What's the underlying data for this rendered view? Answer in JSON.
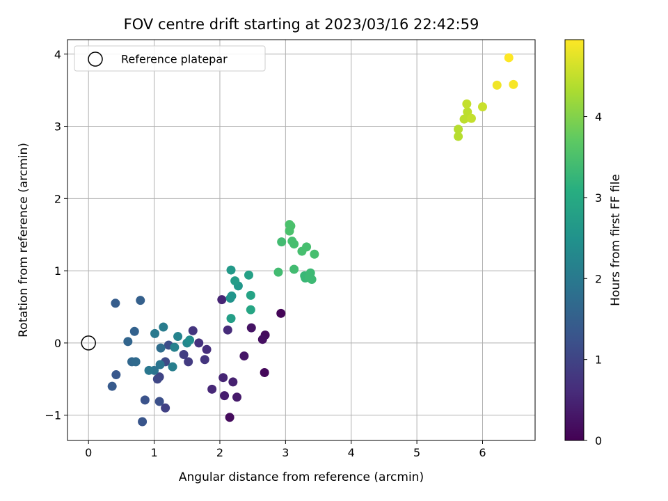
{
  "chart_data": {
    "type": "scatter",
    "title": "FOV centre drift starting at 2023/03/16 22:42:59",
    "xlabel": "Angular distance from reference (arcmin)",
    "ylabel": "Rotation from reference (arcmin)",
    "xlim": [
      -0.32,
      6.8
    ],
    "ylim": [
      -1.35,
      4.2
    ],
    "xticks": [
      0,
      1,
      2,
      3,
      4,
      5,
      6
    ],
    "yticks": [
      -1,
      0,
      1,
      2,
      3,
      4
    ],
    "xtick_labels": [
      "0",
      "1",
      "2",
      "3",
      "4",
      "5",
      "6"
    ],
    "ytick_labels": [
      "−1",
      "0",
      "1",
      "2",
      "3",
      "4"
    ],
    "grid": true,
    "legend": {
      "placement": "top-left",
      "entries": [
        "Reference platepar"
      ]
    },
    "colorbar": {
      "label": "Hours from first FF file",
      "colormap": "viridis",
      "range": [
        0,
        4.95
      ],
      "ticks": [
        0,
        1,
        2,
        3,
        4
      ],
      "tick_labels": [
        "0",
        "1",
        "2",
        "3",
        "4"
      ]
    },
    "reference_point": {
      "x": 0,
      "y": 0,
      "name": "Reference platepar"
    },
    "points": [
      {
        "x": 2.93,
        "y": 0.41,
        "h": 0.05
      },
      {
        "x": 2.68,
        "y": -0.41,
        "h": 0.1
      },
      {
        "x": 2.15,
        "y": -1.03,
        "h": 0.15
      },
      {
        "x": 2.69,
        "y": 0.11,
        "h": 0.15
      },
      {
        "x": 2.65,
        "y": 0.05,
        "h": 0.2
      },
      {
        "x": 2.48,
        "y": 0.21,
        "h": 0.25
      },
      {
        "x": 2.37,
        "y": -0.18,
        "h": 0.3
      },
      {
        "x": 2.26,
        "y": -0.75,
        "h": 0.35
      },
      {
        "x": 2.07,
        "y": -0.73,
        "h": 0.4
      },
      {
        "x": 2.2,
        "y": -0.54,
        "h": 0.45
      },
      {
        "x": 2.05,
        "y": -0.48,
        "h": 0.5
      },
      {
        "x": 2.03,
        "y": 0.6,
        "h": 0.5
      },
      {
        "x": 1.88,
        "y": -0.64,
        "h": 0.55
      },
      {
        "x": 2.12,
        "y": 0.18,
        "h": 0.6
      },
      {
        "x": 1.8,
        "y": -0.09,
        "h": 0.65
      },
      {
        "x": 1.68,
        "y": 0.0,
        "h": 0.7
      },
      {
        "x": 1.59,
        "y": 0.17,
        "h": 0.75
      },
      {
        "x": 1.77,
        "y": -0.23,
        "h": 0.75
      },
      {
        "x": 1.52,
        "y": -0.26,
        "h": 0.85
      },
      {
        "x": 1.45,
        "y": -0.16,
        "h": 0.9
      },
      {
        "x": 1.17,
        "y": -0.9,
        "h": 0.95
      },
      {
        "x": 1.08,
        "y": -0.47,
        "h": 1.0
      },
      {
        "x": 1.05,
        "y": -0.5,
        "h": 1.05
      },
      {
        "x": 1.17,
        "y": -0.26,
        "h": 1.1
      },
      {
        "x": 1.22,
        "y": -0.03,
        "h": 1.15
      },
      {
        "x": 1.08,
        "y": -0.81,
        "h": 1.2
      },
      {
        "x": 0.86,
        "y": -0.79,
        "h": 1.25
      },
      {
        "x": 0.82,
        "y": -1.09,
        "h": 1.3
      },
      {
        "x": 0.42,
        "y": -0.44,
        "h": 1.35
      },
      {
        "x": 0.36,
        "y": -0.6,
        "h": 1.4
      },
      {
        "x": 0.41,
        "y": 0.55,
        "h": 1.45
      },
      {
        "x": 0.79,
        "y": 0.59,
        "h": 1.5
      },
      {
        "x": 0.7,
        "y": 0.16,
        "h": 1.55
      },
      {
        "x": 0.6,
        "y": 0.02,
        "h": 1.6
      },
      {
        "x": 0.66,
        "y": -0.26,
        "h": 1.65
      },
      {
        "x": 0.72,
        "y": -0.26,
        "h": 1.7
      },
      {
        "x": 1.1,
        "y": -0.07,
        "h": 1.75
      },
      {
        "x": 1.0,
        "y": -0.38,
        "h": 1.85
      },
      {
        "x": 1.09,
        "y": -0.3,
        "h": 1.9
      },
      {
        "x": 0.92,
        "y": -0.38,
        "h": 1.95
      },
      {
        "x": 1.01,
        "y": 0.13,
        "h": 2.0
      },
      {
        "x": 1.14,
        "y": 0.22,
        "h": 2.05
      },
      {
        "x": 1.28,
        "y": -0.33,
        "h": 2.1
      },
      {
        "x": 1.31,
        "y": -0.06,
        "h": 2.15
      },
      {
        "x": 1.36,
        "y": 0.09,
        "h": 2.2
      },
      {
        "x": 1.5,
        "y": 0.0,
        "h": 2.3
      },
      {
        "x": 1.54,
        "y": 0.04,
        "h": 2.4
      },
      {
        "x": 2.16,
        "y": 0.62,
        "h": 2.5
      },
      {
        "x": 2.18,
        "y": 0.65,
        "h": 2.55
      },
      {
        "x": 2.28,
        "y": 0.79,
        "h": 2.6
      },
      {
        "x": 2.17,
        "y": 1.01,
        "h": 2.65
      },
      {
        "x": 2.23,
        "y": 0.86,
        "h": 2.7
      },
      {
        "x": 2.17,
        "y": 0.34,
        "h": 2.75
      },
      {
        "x": 2.44,
        "y": 0.94,
        "h": 2.8
      },
      {
        "x": 2.47,
        "y": 0.66,
        "h": 2.85
      },
      {
        "x": 2.47,
        "y": 0.46,
        "h": 2.9
      },
      {
        "x": 3.29,
        "y": 0.93,
        "h": 3.3
      },
      {
        "x": 3.3,
        "y": 0.9,
        "h": 3.3
      },
      {
        "x": 3.36,
        "y": 0.91,
        "h": 3.35
      },
      {
        "x": 3.4,
        "y": 0.88,
        "h": 3.35
      },
      {
        "x": 3.38,
        "y": 0.97,
        "h": 3.35
      },
      {
        "x": 3.13,
        "y": 1.02,
        "h": 3.4
      },
      {
        "x": 2.89,
        "y": 0.98,
        "h": 3.4
      },
      {
        "x": 2.94,
        "y": 1.4,
        "h": 3.4
      },
      {
        "x": 3.1,
        "y": 1.41,
        "h": 3.45
      },
      {
        "x": 3.13,
        "y": 1.37,
        "h": 3.45
      },
      {
        "x": 3.25,
        "y": 1.27,
        "h": 3.45
      },
      {
        "x": 3.32,
        "y": 1.33,
        "h": 3.45
      },
      {
        "x": 3.44,
        "y": 1.23,
        "h": 3.45
      },
      {
        "x": 3.06,
        "y": 1.55,
        "h": 3.5
      },
      {
        "x": 3.06,
        "y": 1.64,
        "h": 3.5
      },
      {
        "x": 3.08,
        "y": 1.62,
        "h": 3.5
      },
      {
        "x": 5.63,
        "y": 2.96,
        "h": 4.4
      },
      {
        "x": 5.63,
        "y": 2.86,
        "h": 4.4
      },
      {
        "x": 5.72,
        "y": 3.1,
        "h": 4.45
      },
      {
        "x": 5.77,
        "y": 3.2,
        "h": 4.45
      },
      {
        "x": 5.76,
        "y": 3.31,
        "h": 4.5
      },
      {
        "x": 5.83,
        "y": 3.11,
        "h": 4.5
      },
      {
        "x": 6.0,
        "y": 3.27,
        "h": 4.55
      },
      {
        "x": 6.22,
        "y": 3.57,
        "h": 4.85
      },
      {
        "x": 6.47,
        "y": 3.58,
        "h": 4.9
      },
      {
        "x": 6.4,
        "y": 3.95,
        "h": 4.95
      }
    ]
  }
}
